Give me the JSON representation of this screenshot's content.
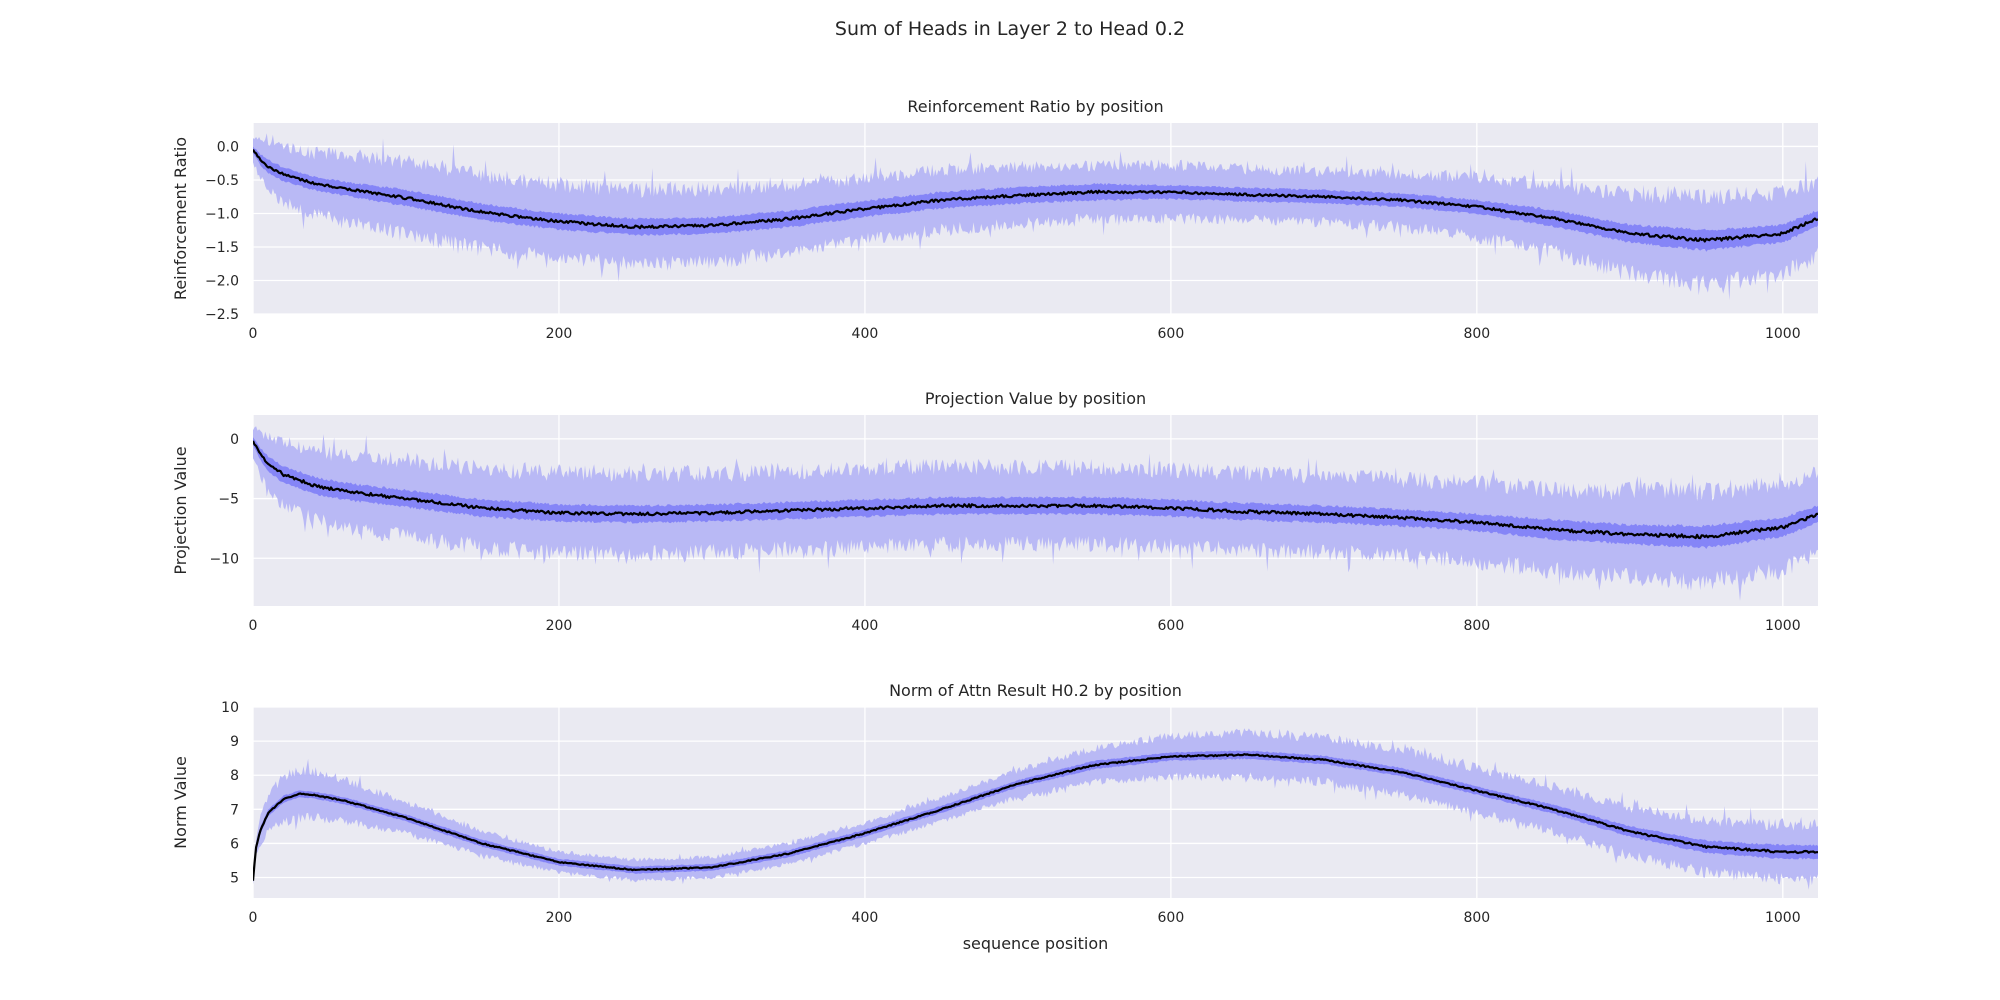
{
  "figure_title": "Sum of Heads in Layer 2 to Head 0.2",
  "colors": {
    "background": "#eaeaf2",
    "grid": "#ffffff",
    "outer_band": "#b9b9f5",
    "inner_band": "#8585f7",
    "mean_line": "#000000",
    "text": "#262626"
  },
  "chart_data": [
    {
      "type": "line",
      "title": "Reinforcement Ratio by position",
      "ylabel": "Reinforcement Ratio",
      "xlabel": "",
      "xlim": [
        0,
        1023
      ],
      "ylim": [
        -2.5,
        0.35
      ],
      "x_ticks": [
        0,
        200,
        400,
        600,
        800,
        1000
      ],
      "y_ticks": [
        0.0,
        -0.5,
        -1.0,
        -1.5,
        -2.0,
        -2.5
      ],
      "y_tick_labels": [
        "0.0",
        "−0.5",
        "−1.0",
        "−1.5",
        "−2.0",
        "−2.5"
      ],
      "grid": true,
      "mean": {
        "x": [
          0,
          5,
          10,
          20,
          40,
          60,
          100,
          150,
          200,
          250,
          300,
          350,
          400,
          450,
          500,
          550,
          600,
          650,
          700,
          750,
          800,
          850,
          900,
          950,
          1000,
          1023
        ],
        "y": [
          -0.05,
          -0.2,
          -0.3,
          -0.42,
          -0.55,
          -0.63,
          -0.77,
          -0.98,
          -1.12,
          -1.2,
          -1.18,
          -1.08,
          -0.93,
          -0.8,
          -0.73,
          -0.68,
          -0.68,
          -0.72,
          -0.75,
          -0.8,
          -0.9,
          -1.07,
          -1.3,
          -1.4,
          -1.3,
          -1.07
        ]
      },
      "inner_band": {
        "x": [
          0,
          5,
          10,
          20,
          40,
          60,
          100,
          150,
          200,
          250,
          300,
          350,
          400,
          450,
          500,
          550,
          600,
          650,
          700,
          750,
          800,
          850,
          900,
          950,
          1000,
          1023
        ],
        "half_width": [
          0.05,
          0.08,
          0.1,
          0.1,
          0.1,
          0.1,
          0.12,
          0.12,
          0.12,
          0.12,
          0.12,
          0.12,
          0.12,
          0.12,
          0.12,
          0.12,
          0.1,
          0.1,
          0.1,
          0.1,
          0.1,
          0.12,
          0.13,
          0.15,
          0.13,
          0.12
        ]
      },
      "outer_band": {
        "x": [
          0,
          5,
          10,
          20,
          40,
          60,
          100,
          150,
          200,
          250,
          300,
          350,
          400,
          450,
          500,
          550,
          600,
          650,
          700,
          750,
          800,
          850,
          900,
          950,
          1000,
          1023
        ],
        "half_width": [
          0.2,
          0.28,
          0.35,
          0.42,
          0.45,
          0.5,
          0.55,
          0.55,
          0.55,
          0.55,
          0.55,
          0.5,
          0.45,
          0.45,
          0.42,
          0.4,
          0.4,
          0.38,
          0.38,
          0.4,
          0.45,
          0.5,
          0.6,
          0.65,
          0.6,
          0.55
        ]
      }
    },
    {
      "type": "line",
      "title": "Projection Value by position",
      "ylabel": "Projection Value",
      "xlabel": "",
      "xlim": [
        0,
        1023
      ],
      "ylim": [
        -14,
        2
      ],
      "x_ticks": [
        0,
        200,
        400,
        600,
        800,
        1000
      ],
      "y_ticks": [
        0,
        -5,
        -10
      ],
      "y_tick_labels": [
        "0",
        "−5",
        "−10"
      ],
      "grid": true,
      "mean": {
        "x": [
          0,
          5,
          10,
          20,
          40,
          60,
          100,
          150,
          200,
          250,
          300,
          350,
          400,
          450,
          500,
          550,
          600,
          650,
          700,
          750,
          800,
          850,
          900,
          950,
          1000,
          1023
        ],
        "y": [
          -0.2,
          -1.3,
          -2.1,
          -3.0,
          -3.9,
          -4.4,
          -5.0,
          -5.8,
          -6.2,
          -6.3,
          -6.2,
          -6.0,
          -5.8,
          -5.6,
          -5.6,
          -5.6,
          -5.8,
          -6.1,
          -6.3,
          -6.6,
          -7.0,
          -7.6,
          -8.0,
          -8.2,
          -7.4,
          -6.3
        ]
      },
      "inner_band": {
        "x": [
          0,
          5,
          10,
          20,
          40,
          60,
          100,
          150,
          200,
          250,
          300,
          350,
          400,
          450,
          500,
          550,
          600,
          650,
          700,
          750,
          800,
          850,
          900,
          950,
          1000,
          1023
        ],
        "half_width": [
          0.3,
          0.5,
          0.6,
          0.7,
          0.7,
          0.7,
          0.7,
          0.7,
          0.7,
          0.7,
          0.7,
          0.7,
          0.7,
          0.7,
          0.7,
          0.7,
          0.7,
          0.7,
          0.7,
          0.7,
          0.7,
          0.8,
          0.8,
          0.9,
          0.8,
          0.7
        ]
      },
      "outer_band": {
        "x": [
          0,
          5,
          10,
          20,
          40,
          60,
          100,
          150,
          200,
          250,
          300,
          350,
          400,
          450,
          500,
          550,
          600,
          650,
          700,
          750,
          800,
          850,
          900,
          950,
          1000,
          1023
        ],
        "half_width": [
          1.2,
          1.8,
          2.2,
          2.6,
          2.8,
          3.0,
          3.2,
          3.3,
          3.4,
          3.4,
          3.3,
          3.3,
          3.3,
          3.3,
          3.2,
          3.2,
          3.2,
          3.2,
          3.2,
          3.2,
          3.3,
          3.4,
          3.6,
          3.8,
          3.6,
          3.4
        ]
      }
    },
    {
      "type": "line",
      "title": "Norm of Attn Result H0.2 by position",
      "ylabel": "Norm Value",
      "xlabel": "sequence position",
      "xlim": [
        0,
        1023
      ],
      "ylim": [
        4.4,
        10
      ],
      "x_ticks": [
        0,
        200,
        400,
        600,
        800,
        1000
      ],
      "y_ticks": [
        5,
        6,
        7,
        8,
        9,
        10
      ],
      "y_tick_labels": [
        "5",
        "6",
        "7",
        "8",
        "9",
        "10"
      ],
      "grid": true,
      "mean": {
        "x": [
          0,
          2,
          5,
          10,
          20,
          30,
          40,
          60,
          100,
          150,
          200,
          250,
          300,
          350,
          400,
          450,
          500,
          550,
          600,
          650,
          700,
          750,
          800,
          850,
          900,
          950,
          1000,
          1023
        ],
        "y": [
          4.9,
          5.9,
          6.4,
          6.9,
          7.3,
          7.45,
          7.42,
          7.25,
          6.75,
          6.0,
          5.45,
          5.22,
          5.3,
          5.7,
          6.3,
          7.0,
          7.75,
          8.3,
          8.55,
          8.6,
          8.45,
          8.1,
          7.55,
          7.0,
          6.35,
          5.9,
          5.75,
          5.75
        ]
      },
      "inner_band": {
        "x": [
          0,
          2,
          5,
          10,
          20,
          30,
          40,
          60,
          100,
          150,
          200,
          250,
          300,
          350,
          400,
          450,
          500,
          550,
          600,
          650,
          700,
          750,
          800,
          850,
          900,
          950,
          1000,
          1023
        ],
        "half_width": [
          0.05,
          0.08,
          0.1,
          0.1,
          0.1,
          0.1,
          0.1,
          0.1,
          0.1,
          0.1,
          0.1,
          0.1,
          0.1,
          0.1,
          0.1,
          0.1,
          0.1,
          0.12,
          0.12,
          0.12,
          0.12,
          0.12,
          0.12,
          0.13,
          0.15,
          0.18,
          0.2,
          0.2
        ]
      },
      "outer_band": {
        "x": [
          0,
          2,
          5,
          10,
          20,
          30,
          40,
          60,
          100,
          150,
          200,
          250,
          300,
          350,
          400,
          450,
          500,
          550,
          600,
          650,
          700,
          750,
          800,
          850,
          900,
          950,
          1000,
          1023
        ],
        "half_width": [
          0.1,
          0.25,
          0.4,
          0.55,
          0.65,
          0.7,
          0.68,
          0.6,
          0.45,
          0.35,
          0.3,
          0.3,
          0.3,
          0.3,
          0.3,
          0.35,
          0.4,
          0.5,
          0.6,
          0.65,
          0.65,
          0.65,
          0.65,
          0.65,
          0.7,
          0.75,
          0.8,
          0.8
        ]
      }
    }
  ]
}
